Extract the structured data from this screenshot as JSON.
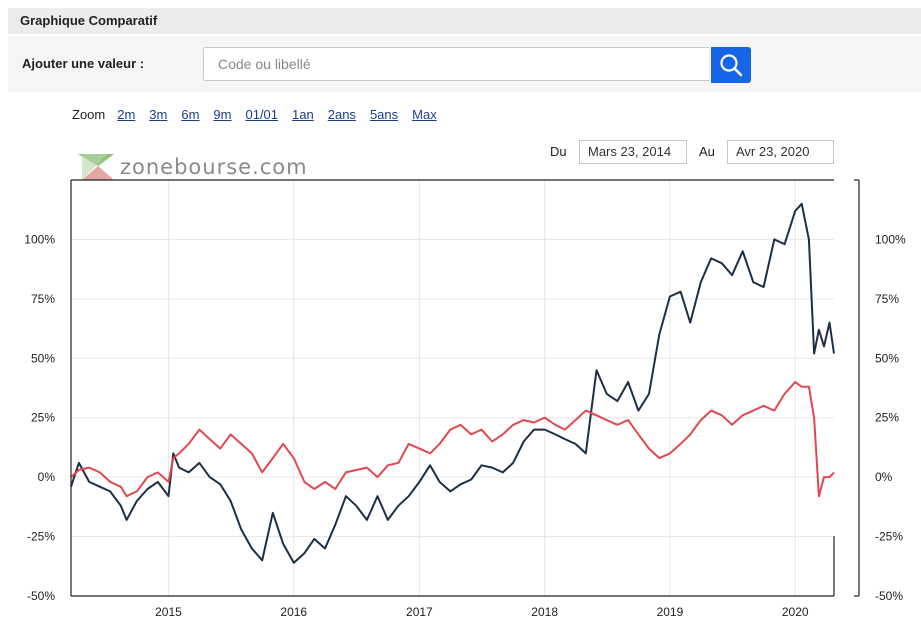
{
  "header": {
    "title": "Graphique Comparatif"
  },
  "search": {
    "label": "Ajouter une valeur :",
    "placeholder": "Code ou libellé"
  },
  "zoom": {
    "label": "Zoom",
    "options": [
      "2m",
      "3m",
      "6m",
      "9m",
      "01/01",
      "1an",
      "2ans",
      "5ans",
      "Max"
    ]
  },
  "dates": {
    "from_label": "Du",
    "from_value": "Mars 23, 2014",
    "to_label": "Au",
    "to_value": "Avr 23, 2020"
  },
  "logo": {
    "text": "zonebourse.com"
  },
  "colors": {
    "series_dark": "#1d2f45",
    "series_red": "#e24850",
    "grid": "#e6e6e6",
    "search_button": "#1565e6"
  },
  "chart_data": {
    "type": "line",
    "x_range": [
      "2014-03-23",
      "2020-04-23"
    ],
    "xticks": [
      "2015",
      "2016",
      "2017",
      "2018",
      "2019",
      "2020"
    ],
    "ylim": [
      -50,
      125
    ],
    "yticks": [
      "-50%",
      "-25%",
      "0%",
      "25%",
      "50%",
      "75%",
      "100%"
    ],
    "grid": true,
    "series": [
      {
        "color": "#1d2f45",
        "x": [
          "2014-03-23",
          "2014-04-15",
          "2014-05-15",
          "2014-06-15",
          "2014-07-15",
          "2014-08-15",
          "2014-09-01",
          "2014-10-01",
          "2014-11-01",
          "2014-12-01",
          "2015-01-01",
          "2015-01-15",
          "2015-02-01",
          "2015-03-01",
          "2015-04-01",
          "2015-05-01",
          "2015-06-01",
          "2015-07-01",
          "2015-08-01",
          "2015-09-01",
          "2015-10-01",
          "2015-11-01",
          "2015-12-01",
          "2016-01-01",
          "2016-02-01",
          "2016-03-01",
          "2016-04-01",
          "2016-05-01",
          "2016-06-01",
          "2016-07-01",
          "2016-08-01",
          "2016-09-01",
          "2016-10-01",
          "2016-11-01",
          "2016-12-01",
          "2017-01-01",
          "2017-02-01",
          "2017-03-01",
          "2017-04-01",
          "2017-05-01",
          "2017-06-01",
          "2017-07-01",
          "2017-08-01",
          "2017-09-01",
          "2017-10-01",
          "2017-11-01",
          "2017-12-01",
          "2018-01-01",
          "2018-02-01",
          "2018-03-01",
          "2018-04-01",
          "2018-05-01",
          "2018-06-01",
          "2018-07-01",
          "2018-08-01",
          "2018-09-01",
          "2018-10-01",
          "2018-11-01",
          "2018-12-01",
          "2019-01-01",
          "2019-02-01",
          "2019-03-01",
          "2019-04-01",
          "2019-05-01",
          "2019-06-01",
          "2019-07-01",
          "2019-08-01",
          "2019-09-01",
          "2019-10-01",
          "2019-11-01",
          "2019-12-01",
          "2020-01-01",
          "2020-01-20",
          "2020-02-10",
          "2020-02-25",
          "2020-03-10",
          "2020-03-25",
          "2020-04-10",
          "2020-04-23"
        ],
        "values": [
          -4,
          6,
          -2,
          -4,
          -6,
          -12,
          -18,
          -10,
          -5,
          -2,
          -8,
          10,
          4,
          2,
          6,
          0,
          -3,
          -10,
          -22,
          -30,
          -35,
          -15,
          -28,
          -36,
          -32,
          -26,
          -30,
          -20,
          -8,
          -12,
          -18,
          -8,
          -18,
          -12,
          -8,
          -2,
          5,
          -2,
          -6,
          -3,
          -1,
          5,
          4,
          2,
          6,
          15,
          20,
          20,
          18,
          16,
          14,
          10,
          45,
          35,
          32,
          40,
          28,
          35,
          60,
          76,
          78,
          65,
          82,
          92,
          90,
          85,
          95,
          82,
          80,
          100,
          98,
          112,
          115,
          100,
          52,
          62,
          55,
          65,
          52
        ]
      },
      {
        "color": "#e24850",
        "x": [
          "2014-03-23",
          "2014-04-15",
          "2014-05-15",
          "2014-06-15",
          "2014-07-15",
          "2014-08-15",
          "2014-09-01",
          "2014-10-01",
          "2014-11-01",
          "2014-12-01",
          "2015-01-01",
          "2015-01-15",
          "2015-02-01",
          "2015-03-01",
          "2015-04-01",
          "2015-05-01",
          "2015-06-01",
          "2015-07-01",
          "2015-08-01",
          "2015-09-01",
          "2015-10-01",
          "2015-11-01",
          "2015-12-01",
          "2016-01-01",
          "2016-02-01",
          "2016-03-01",
          "2016-04-01",
          "2016-05-01",
          "2016-06-01",
          "2016-07-01",
          "2016-08-01",
          "2016-09-01",
          "2016-10-01",
          "2016-11-01",
          "2016-12-01",
          "2017-01-01",
          "2017-02-01",
          "2017-03-01",
          "2017-04-01",
          "2017-05-01",
          "2017-06-01",
          "2017-07-01",
          "2017-08-01",
          "2017-09-01",
          "2017-10-01",
          "2017-11-01",
          "2017-12-01",
          "2018-01-01",
          "2018-02-01",
          "2018-03-01",
          "2018-04-01",
          "2018-05-01",
          "2018-06-01",
          "2018-07-01",
          "2018-08-01",
          "2018-09-01",
          "2018-10-01",
          "2018-11-01",
          "2018-12-01",
          "2019-01-01",
          "2019-02-01",
          "2019-03-01",
          "2019-04-01",
          "2019-05-01",
          "2019-06-01",
          "2019-07-01",
          "2019-08-01",
          "2019-09-01",
          "2019-10-01",
          "2019-11-01",
          "2019-12-01",
          "2020-01-01",
          "2020-01-20",
          "2020-02-10",
          "2020-02-25",
          "2020-03-10",
          "2020-03-25",
          "2020-04-10",
          "2020-04-23"
        ],
        "values": [
          0,
          3,
          4,
          2,
          -2,
          -4,
          -8,
          -6,
          0,
          2,
          -2,
          8,
          10,
          14,
          20,
          16,
          12,
          18,
          14,
          10,
          2,
          8,
          14,
          8,
          -2,
          -5,
          -2,
          -5,
          2,
          3,
          4,
          0,
          5,
          6,
          14,
          12,
          10,
          14,
          20,
          22,
          18,
          20,
          15,
          18,
          22,
          24,
          23,
          25,
          22,
          20,
          24,
          28,
          26,
          24,
          22,
          24,
          18,
          12,
          8,
          10,
          14,
          18,
          24,
          28,
          26,
          22,
          26,
          28,
          30,
          28,
          35,
          40,
          38,
          38,
          25,
          -8,
          0,
          0,
          2
        ]
      }
    ]
  }
}
